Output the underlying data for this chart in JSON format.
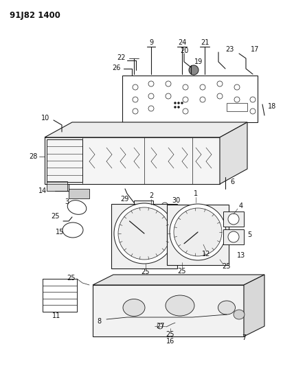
{
  "title": "91J82 1400",
  "bg_color": "#ffffff",
  "line_color": "#1a1a1a",
  "title_fontsize": 8.5,
  "label_fontsize": 7,
  "fig_width": 4.12,
  "fig_height": 5.33,
  "dpi": 100
}
